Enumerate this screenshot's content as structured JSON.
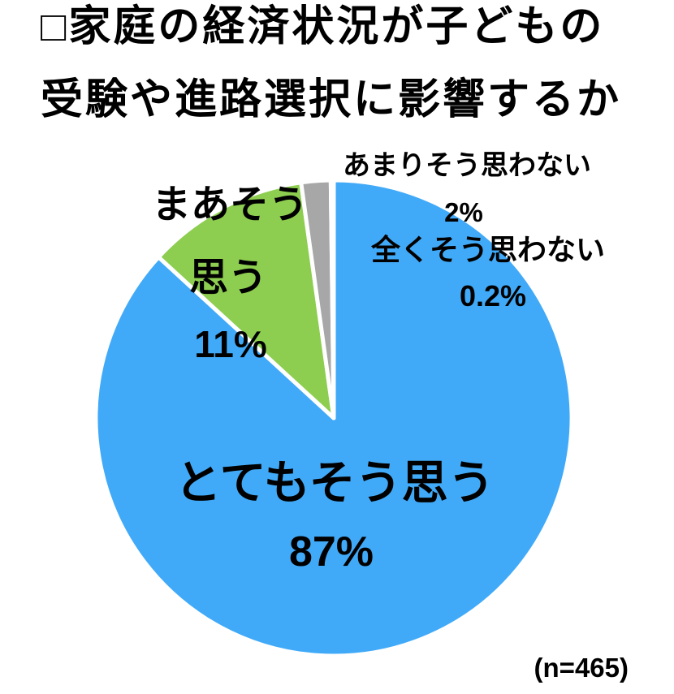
{
  "title": {
    "line1": "□家庭の経済状況が子どもの",
    "line2": "受験や進路選択に影響するか"
  },
  "footnote": "(n=465)",
  "labels": {
    "maa_line1": "まあそう",
    "maa_line2": "思う"
  },
  "chart_data": {
    "type": "pie",
    "title": "家庭の経済状況が子どもの受験や進路選択に影響するか",
    "sample_size_label": "(n=465)",
    "start_angle_deg": 0,
    "direction": "clockwise",
    "legend_position": "none",
    "slices": [
      {
        "label": "とてもそう思う",
        "value_pct": 87,
        "display_value": "87%",
        "color": "#41aaf8"
      },
      {
        "label": "まあそう思う",
        "value_pct": 11,
        "display_value": "11%",
        "color": "#8dce50"
      },
      {
        "label": "あまりそう思わない",
        "value_pct": 2,
        "display_value": "2%",
        "color": "#a7a7a7"
      },
      {
        "label": "全くそう思わない",
        "value_pct": 0.2,
        "display_value": "0.2%",
        "color": "#ffffff"
      }
    ]
  }
}
